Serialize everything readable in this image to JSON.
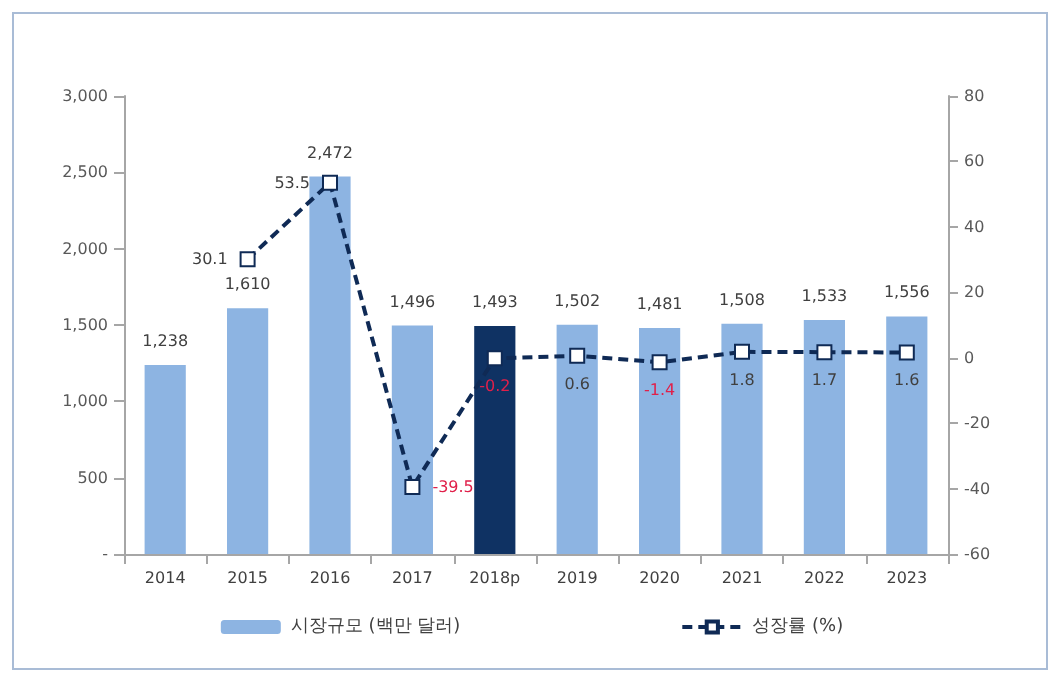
{
  "chart_data": {
    "type": "bar",
    "categories": [
      "2014",
      "2015",
      "2016",
      "2017",
      "2018p",
      "2019",
      "2020",
      "2021",
      "2022",
      "2023"
    ],
    "series": [
      {
        "name": "시장규모 (백만 달러)",
        "color": "#8db4e2",
        "colors": [
          "#8db4e2",
          "#8db4e2",
          "#8db4e2",
          "#8db4e2",
          "#0f3263",
          "#8db4e2",
          "#8db4e2",
          "#8db4e2",
          "#8db4e2",
          "#8db4e2"
        ],
        "values": [
          1238,
          1610,
          2472,
          1496,
          1493,
          1502,
          1481,
          1508,
          1533,
          1556
        ],
        "value_labels": [
          "1,238",
          "1,610",
          "2,472",
          "1,496",
          "1,493",
          "1,502",
          "1,481",
          "1,508",
          "1,533",
          "1,556"
        ]
      },
      {
        "name": "성장률 (%)",
        "type": "line",
        "axis": "y2",
        "color": "#0f2a55",
        "values": [
          null,
          30.1,
          53.5,
          -39.5,
          -0.2,
          0.6,
          -1.4,
          1.8,
          1.7,
          1.6
        ],
        "value_labels": [
          null,
          "30.1",
          "53.5",
          "-39.5",
          "-0.2",
          "0.6",
          "-1.4",
          "1.8",
          "1.7",
          "1.6"
        ]
      }
    ],
    "ylim": [
      0,
      3000
    ],
    "yticks": [
      {
        "value": 0,
        "label": "-"
      },
      500,
      {
        "value": 1000,
        "label": "1,000"
      },
      {
        "value": 1500,
        "label": "1,500"
      },
      {
        "value": 2000,
        "label": "2,000"
      },
      {
        "value": 2500,
        "label": "2,500"
      },
      {
        "value": 3000,
        "label": "3,000"
      }
    ],
    "y2lim": [
      -60,
      80
    ],
    "y2ticks": [
      -60,
      -40,
      -20,
      0,
      20,
      40,
      60,
      80
    ],
    "legend": "bottom",
    "grid": false,
    "marker": "square",
    "line_style": "dashed"
  }
}
